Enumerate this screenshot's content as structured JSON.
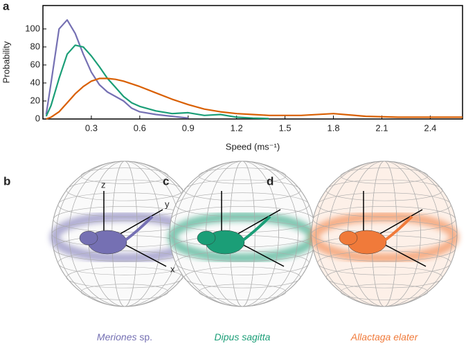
{
  "chart_data": {
    "type": "line",
    "panel_label": "a",
    "x_label": "Speed (ms⁻¹)",
    "y_label": "Probability",
    "x": [
      0.02,
      0.05,
      0.1,
      0.15,
      0.2,
      0.25,
      0.3,
      0.35,
      0.4,
      0.45,
      0.5,
      0.55,
      0.6,
      0.7,
      0.8,
      0.9,
      1.0,
      1.1,
      1.2,
      1.3,
      1.4,
      1.6,
      1.8,
      2.0,
      2.2,
      2.4,
      2.6
    ],
    "series": [
      {
        "color": "#7570b3",
        "values": [
          5,
          40,
          100,
          110,
          95,
          72,
          52,
          38,
          30,
          25,
          20,
          12,
          8,
          5,
          3,
          1,
          null,
          null,
          null,
          null,
          null,
          null,
          null,
          null,
          null,
          null,
          null
        ]
      },
      {
        "color": "#1b9e77",
        "values": [
          3,
          15,
          45,
          72,
          82,
          80,
          70,
          58,
          45,
          35,
          25,
          18,
          14,
          9,
          6,
          7,
          4,
          5,
          2,
          1,
          0.5,
          null,
          null,
          null,
          null,
          null,
          null
        ]
      },
      {
        "color": "#d95f02",
        "values": [
          0,
          2,
          8,
          18,
          28,
          36,
          42,
          45,
          45,
          44,
          42,
          39,
          36,
          29,
          22,
          16,
          11,
          8,
          6,
          5,
          4,
          4,
          6,
          3,
          2,
          2,
          2
        ]
      }
    ],
    "xlim": [
      0,
      2.6
    ],
    "ylim": [
      0,
      126
    ],
    "xticks": [
      0.3,
      0.6,
      0.9,
      1.2,
      1.5,
      1.8,
      2.1,
      2.4
    ],
    "yticks": [
      0,
      20,
      40,
      60,
      80,
      100
    ]
  },
  "panels": [
    {
      "letter": "b",
      "species": "Meriones",
      "suffix": "sp.",
      "color": "#7570b3"
    },
    {
      "letter": "c",
      "species": "Dipus sagitta",
      "color": "#1b9e77"
    },
    {
      "letter": "d",
      "species": "Allactaga elater",
      "color": "#f07a3a"
    }
  ],
  "axis_names": [
    "z",
    "y",
    "x"
  ]
}
